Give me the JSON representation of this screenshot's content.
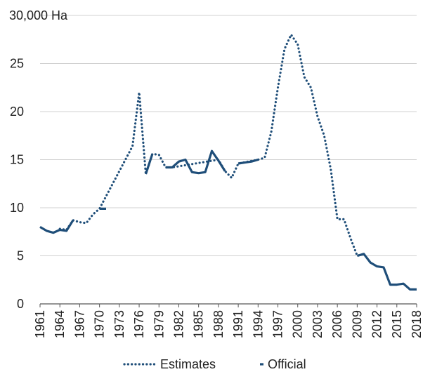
{
  "chart_data": {
    "type": "line",
    "unit_label": "30,000 Ha",
    "y_ticks": [
      {
        "value": 0,
        "label": "0"
      },
      {
        "value": 5000,
        "label": "5"
      },
      {
        "value": 10000,
        "label": "10"
      },
      {
        "value": 15000,
        "label": "15"
      },
      {
        "value": 20000,
        "label": "20"
      },
      {
        "value": 25000,
        "label": "25"
      },
      {
        "value": 30000,
        "label": "30,000 Ha"
      }
    ],
    "x_ticks": [
      1961,
      1964,
      1967,
      1970,
      1973,
      1976,
      1979,
      1982,
      1985,
      1988,
      1991,
      1994,
      1997,
      2000,
      2003,
      2006,
      2009,
      2012,
      2015,
      2018
    ],
    "xlim": [
      1961,
      2018
    ],
    "ylim": [
      0,
      30000
    ],
    "grid": true,
    "legend_position": "bottom",
    "colors": {
      "series": "#1f4e79",
      "grid": "#d0d0d0",
      "axis": "#555555"
    },
    "series": [
      {
        "name": "Estimates",
        "style": "dotted",
        "x": [
          1964,
          1965,
          1966,
          1967,
          1968,
          1969,
          1970,
          1975,
          1976,
          1977,
          1978,
          1979,
          1980,
          1981,
          1988,
          1989,
          1990,
          1991,
          1994,
          1995,
          1996,
          1997,
          1998,
          1999,
          2000,
          2001,
          2002,
          2003,
          2004,
          2005,
          2006,
          2007,
          2008,
          2009,
          2010
        ],
        "y": [
          7800,
          7700,
          8700,
          8500,
          8400,
          9300,
          9900,
          16400,
          22000,
          13500,
          15600,
          15500,
          14200,
          14200,
          15000,
          13800,
          13100,
          14600,
          15000,
          15200,
          17900,
          22500,
          26500,
          28000,
          27000,
          23600,
          22500,
          19500,
          17500,
          14000,
          8800,
          8800,
          6800,
          5000,
          5200
        ]
      },
      {
        "name": "Official",
        "style": "solid",
        "x": [
          1961,
          1962,
          1963,
          1964,
          1965,
          1966
        ],
        "y": [
          8000,
          7600,
          7400,
          7700,
          7600,
          8700
        ]
      },
      {
        "name": "Official",
        "style": "solid",
        "x": [
          1970,
          1971
        ],
        "y": [
          9900,
          9900
        ]
      },
      {
        "name": "Official",
        "style": "solid",
        "x": [
          1977,
          1978
        ],
        "y": [
          13500,
          15600
        ]
      },
      {
        "name": "Official",
        "style": "solid",
        "x": [
          1980,
          1981,
          1982,
          1983,
          1984,
          1985,
          1986,
          1987,
          1988,
          1989
        ],
        "y": [
          14200,
          14200,
          14800,
          15000,
          13700,
          13600,
          13700,
          15900,
          14900,
          13800
        ]
      },
      {
        "name": "Official",
        "style": "solid",
        "x": [
          1991,
          1992,
          1993,
          1994
        ],
        "y": [
          14600,
          14700,
          14800,
          15000
        ]
      },
      {
        "name": "Official",
        "style": "solid",
        "x": [
          2009,
          2010,
          2011,
          2012,
          2013,
          2014,
          2015,
          2016,
          2017,
          2018
        ],
        "y": [
          5000,
          5200,
          4300,
          3900,
          3800,
          2000,
          2000,
          2100,
          1500,
          1500
        ]
      }
    ],
    "legend": [
      {
        "label": "Estimates",
        "style": "dotted"
      },
      {
        "label": "Official",
        "style": "solid"
      }
    ]
  }
}
